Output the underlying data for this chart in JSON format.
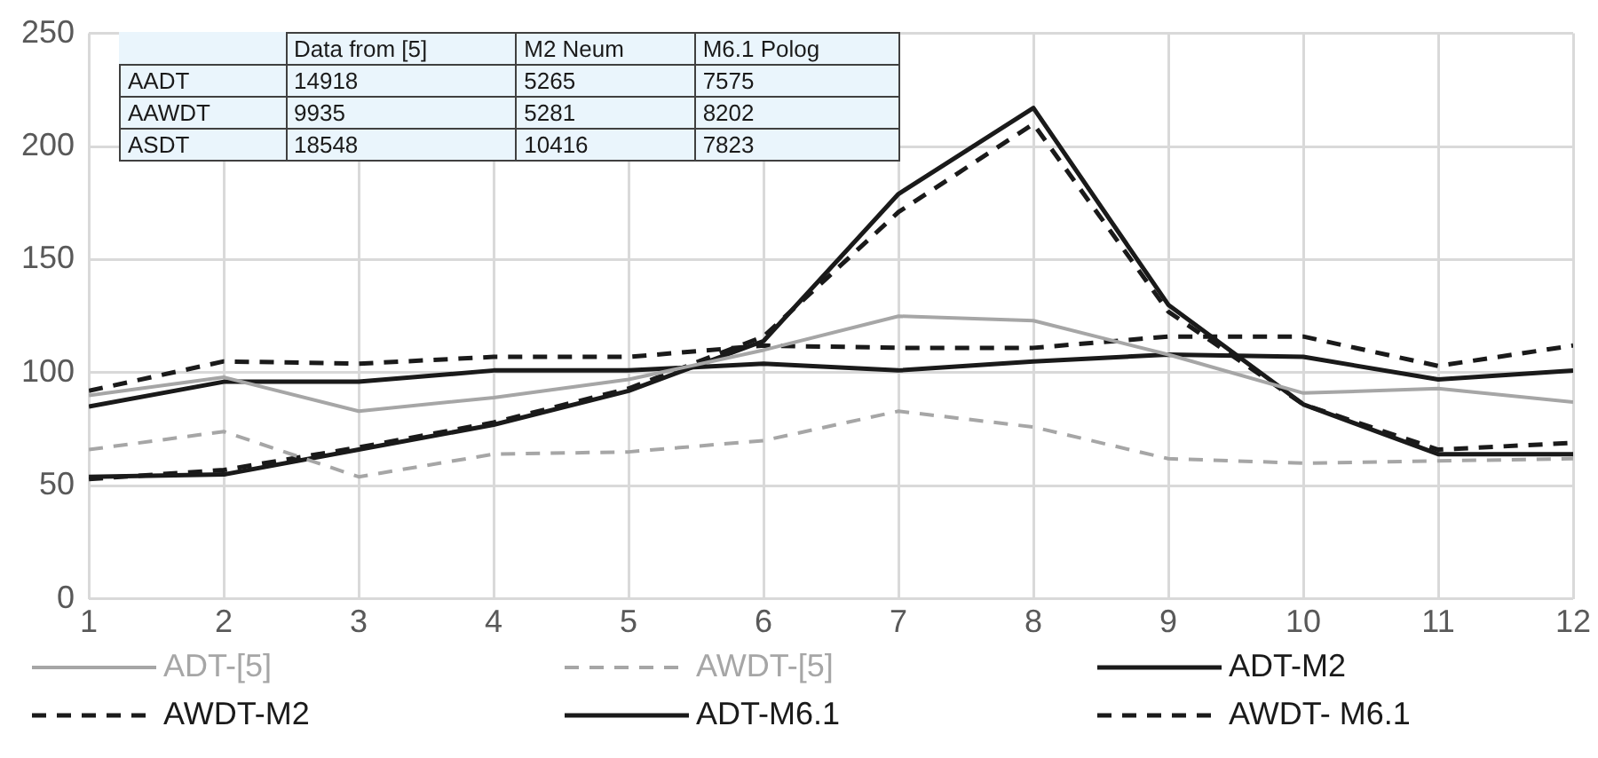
{
  "chart_data": {
    "type": "line",
    "x": [
      1,
      2,
      3,
      4,
      5,
      6,
      7,
      8,
      9,
      10,
      11,
      12
    ],
    "xlim": [
      1,
      12
    ],
    "xticks": [
      1,
      2,
      3,
      4,
      5,
      6,
      7,
      8,
      9,
      10,
      11,
      12
    ],
    "ylim": [
      0,
      250
    ],
    "yticks": [
      0,
      50,
      100,
      150,
      200,
      250
    ],
    "grid": true,
    "legend": "bottom",
    "marker": "none",
    "series": [
      {
        "name": "ADT-[5]",
        "color": "#a6a6a6",
        "line_style": "solid",
        "values": [
          90,
          98,
          83,
          89,
          97,
          110,
          125,
          123,
          108,
          91,
          93,
          87
        ]
      },
      {
        "name": "AWDT-[5]",
        "color": "#a6a6a6",
        "line_style": "dashed",
        "values": [
          66,
          74,
          54,
          64,
          65,
          70,
          83,
          76,
          62,
          60,
          61,
          62
        ]
      },
      {
        "name": "ADT-M2",
        "color": "#1a1a1a",
        "line_style": "solid",
        "values": [
          85,
          96,
          96,
          101,
          101,
          104,
          101,
          105,
          108,
          107,
          97,
          101
        ]
      },
      {
        "name": "AWDT-M2",
        "color": "#1a1a1a",
        "line_style": "dashed",
        "values": [
          92,
          105,
          104,
          107,
          107,
          112,
          111,
          111,
          116,
          116,
          103,
          112
        ]
      },
      {
        "name": "ADT-M6.1",
        "color": "#1a1a1a",
        "line_style": "solid",
        "values": [
          54,
          55,
          66,
          77,
          92,
          114,
          179,
          217,
          130,
          86,
          64,
          64
        ]
      },
      {
        "name": "AWDT- M6.1",
        "color": "#1a1a1a",
        "line_style": "dashed",
        "values": [
          53,
          57,
          67,
          78,
          93,
          116,
          171,
          210,
          127,
          86,
          66,
          69
        ]
      }
    ],
    "annotations": [
      "Data from [5]",
      "M2 Neum",
      "M6.1 Polog",
      "AADT",
      "14918",
      "5265",
      "7575",
      "AAWDT",
      "9935",
      "5281",
      "8202",
      "ASDT",
      "18548",
      "10416",
      "7823"
    ]
  }
}
